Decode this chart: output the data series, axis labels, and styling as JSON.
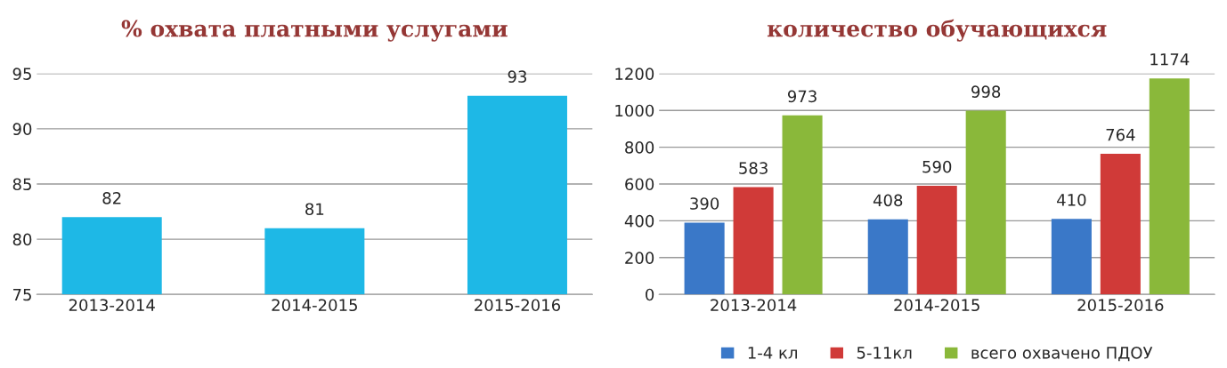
{
  "chart_data": [
    {
      "type": "bar",
      "title": "% охвата платными услугами",
      "categories": [
        "2013-2014",
        "2014-2015",
        "2015-2016"
      ],
      "values": [
        82,
        81,
        93
      ],
      "color": "#1eb8e6",
      "ylim": [
        75,
        95
      ],
      "yticks": [
        75,
        80,
        85,
        90,
        95
      ],
      "grid": "y",
      "data_labels": true,
      "legend": false
    },
    {
      "type": "bar",
      "title": "количество обучающихся",
      "categories": [
        "2013-2014",
        "2014-2015",
        "2015-2016"
      ],
      "series": [
        {
          "name": "1-4 кл",
          "color": "#3a78c8",
          "values": [
            390,
            408,
            410
          ]
        },
        {
          "name": "5-11кл",
          "color": "#d03a38",
          "values": [
            583,
            590,
            764
          ]
        },
        {
          "name": "всего охвачено ПДОУ",
          "color": "#8ab83a",
          "values": [
            973,
            998,
            1174
          ]
        }
      ],
      "ylim": [
        0,
        1200
      ],
      "yticks": [
        0,
        200,
        400,
        600,
        800,
        1000,
        1200
      ],
      "grid": "y",
      "data_labels": true,
      "legend": "bottom"
    }
  ]
}
